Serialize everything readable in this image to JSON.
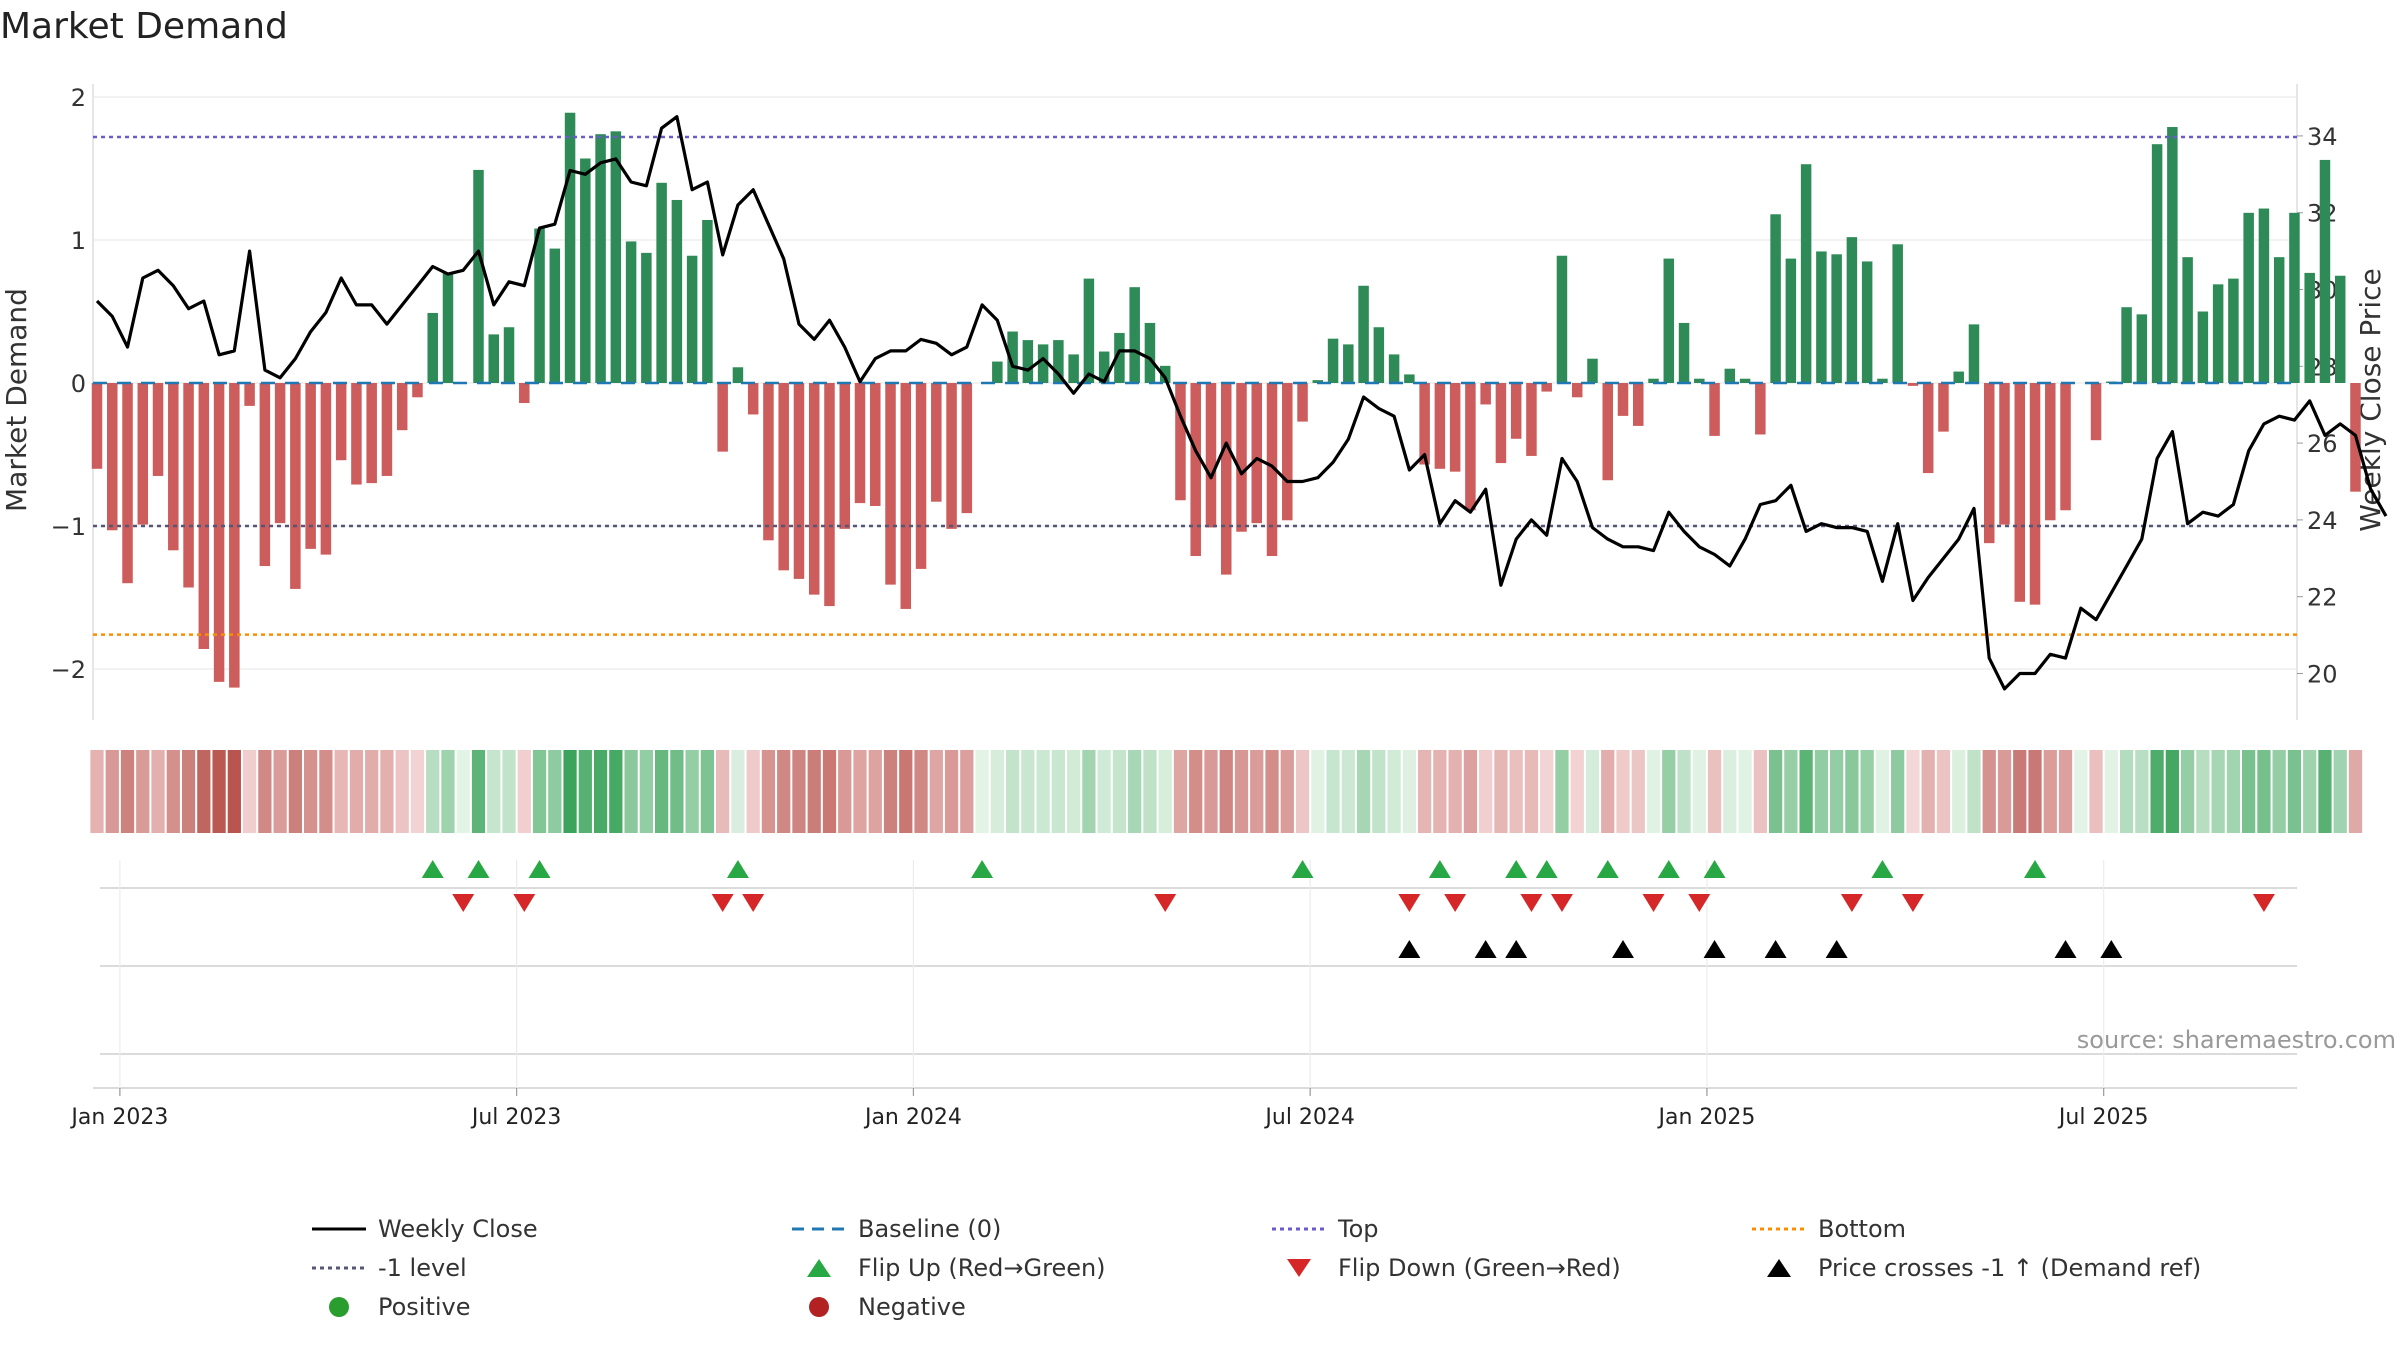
{
  "chart_data": {
    "type": "bar",
    "title": "Market Demand",
    "left_axis": {
      "label": "Market Demand",
      "range": [
        -2.35,
        2.15
      ],
      "ticks": [
        2,
        1,
        0,
        -1,
        -2
      ],
      "tick_labels": [
        "2",
        "1",
        "0",
        "−1",
        "−2"
      ]
    },
    "right_axis": {
      "label": "Weekly Close Price",
      "range": [
        18.8,
        35.2
      ],
      "ticks": [
        20,
        22,
        24,
        26,
        28,
        30,
        32,
        34
      ],
      "tick_labels": [
        "20",
        "22",
        "24",
        "26",
        "28",
        "30",
        "32",
        "34"
      ]
    },
    "x_ticks": [
      "Jan 2023",
      "Jul 2023",
      "Jan 2024",
      "Jul 2024",
      "Jan 2025",
      "Jul 2025"
    ],
    "reference_levels": {
      "top": 1.72,
      "minus_one": -1.0,
      "bottom": -1.76,
      "baseline": 0
    },
    "demand_series": {
      "name": "Market Demand",
      "values": [
        -0.6,
        -1.03,
        -1.4,
        -0.99,
        -0.65,
        -1.17,
        -1.43,
        -1.86,
        -2.09,
        -2.13,
        -0.16,
        -1.28,
        -0.98,
        -1.44,
        -1.16,
        -1.2,
        -0.54,
        -0.71,
        -0.7,
        -0.65,
        -0.33,
        -0.1,
        0.49,
        0.77,
        0.0,
        1.49,
        0.34,
        0.39,
        -0.14,
        1.08,
        0.94,
        1.89,
        1.57,
        1.74,
        1.76,
        0.99,
        0.91,
        1.4,
        1.28,
        0.89,
        1.14,
        -0.48,
        0.11,
        -0.22,
        -1.1,
        -1.31,
        -1.37,
        -1.48,
        -1.56,
        -1.02,
        -0.84,
        -0.86,
        -1.41,
        -1.58,
        -1.3,
        -0.83,
        -1.02,
        -0.91,
        0.0,
        0.15,
        0.36,
        0.3,
        0.27,
        0.3,
        0.2,
        0.73,
        0.22,
        0.35,
        0.67,
        0.42,
        0.12,
        -0.82,
        -1.21,
        -1.01,
        -1.34,
        -1.04,
        -0.98,
        -1.21,
        -0.96,
        -0.27,
        0.02,
        0.31,
        0.27,
        0.68,
        0.39,
        0.2,
        0.06,
        -0.57,
        -0.6,
        -0.62,
        -0.89,
        -0.15,
        -0.56,
        -0.39,
        -0.51,
        -0.06,
        0.89,
        -0.1,
        0.17,
        -0.68,
        -0.23,
        -0.3,
        0.03,
        0.87,
        0.42,
        0.03,
        -0.37,
        0.1,
        0.03,
        -0.36,
        1.18,
        0.87,
        1.53,
        0.92,
        0.9,
        1.02,
        0.85,
        0.03,
        0.97,
        -0.02,
        -0.63,
        -0.34,
        0.08,
        0.41,
        -1.12,
        -0.99,
        -1.53,
        -1.55,
        -0.96,
        -0.89,
        0.0,
        -0.4,
        0.01,
        0.53,
        0.48,
        1.67,
        1.79,
        0.88,
        0.5,
        0.69,
        0.73,
        1.19,
        1.22,
        0.88,
        1.19,
        0.77,
        1.56,
        0.75,
        -0.76
      ]
    },
    "weekly_close": {
      "name": "Weekly Close",
      "values": [
        29.7,
        29.3,
        28.5,
        30.3,
        30.5,
        30.1,
        29.5,
        29.7,
        28.3,
        28.4,
        31.0,
        27.9,
        27.7,
        28.2,
        28.9,
        29.4,
        30.3,
        29.6,
        29.6,
        29.1,
        29.6,
        30.1,
        30.6,
        30.4,
        30.5,
        31.0,
        29.6,
        30.2,
        30.1,
        31.6,
        31.7,
        33.1,
        33.0,
        33.3,
        33.4,
        32.8,
        32.7,
        34.2,
        34.5,
        32.6,
        32.8,
        30.9,
        32.2,
        32.6,
        31.7,
        30.8,
        29.1,
        28.7,
        29.2,
        28.5,
        27.6,
        28.2,
        28.4,
        28.4,
        28.7,
        28.6,
        28.3,
        28.5,
        29.6,
        29.2,
        28.0,
        27.9,
        28.2,
        27.8,
        27.3,
        27.8,
        27.6,
        28.4,
        28.4,
        28.2,
        27.7,
        26.7,
        25.8,
        25.1,
        26.0,
        25.2,
        25.6,
        25.4,
        25.0,
        25.0,
        25.1,
        25.5,
        26.1,
        27.2,
        26.9,
        26.7,
        25.3,
        25.7,
        23.9,
        24.5,
        24.2,
        24.8,
        22.3,
        23.5,
        24.0,
        23.6,
        25.6,
        25.0,
        23.8,
        23.5,
        23.3,
        23.3,
        23.2,
        24.2,
        23.7,
        23.3,
        23.1,
        22.8,
        23.5,
        24.4,
        24.5,
        24.9,
        23.7,
        23.9,
        23.8,
        23.8,
        23.7,
        22.4,
        23.9,
        21.9,
        22.5,
        23.0,
        23.5,
        24.3,
        20.4,
        19.6,
        20.0,
        20.0,
        20.5,
        20.4,
        21.7,
        21.4,
        22.1,
        22.8,
        23.5,
        25.6,
        26.3,
        23.9,
        24.2,
        24.1,
        24.4,
        25.8,
        26.5,
        26.7,
        26.6,
        27.1,
        26.2,
        26.5,
        26.2,
        24.8,
        24.1
      ]
    },
    "flip_up_indices": [
      22,
      25,
      29,
      42,
      58,
      79,
      88,
      93,
      95,
      99,
      103,
      106,
      117,
      127
    ],
    "flip_down_indices": [
      24,
      28,
      41,
      43,
      70,
      86,
      89,
      94,
      96,
      102,
      105,
      115,
      119,
      142
    ],
    "price_cross_indices": [
      86,
      91,
      93,
      100,
      106,
      110,
      114,
      129,
      132
    ],
    "heat_strip": "per-week demand colour (green = positive, red = negative)",
    "legend_position": "bottom",
    "source": "source: sharemaestro.com"
  },
  "legend": {
    "weekly_close": "Weekly Close",
    "baseline": "Baseline (0)",
    "top": "Top",
    "bottom": "Bottom",
    "minus_one": "-1 level",
    "flip_up": "Flip Up (Red→Green)",
    "flip_down": "Flip Down (Green→Red)",
    "price_cross": "Price crosses -1 ↑ (Demand ref)",
    "positive": "Positive",
    "negative": "Negative"
  },
  "colors": {
    "positive_bar": "#2e8b57",
    "negative_bar": "#cd5c5c",
    "price_line": "#000000",
    "baseline": "#1f77b4",
    "top": "#6a5acd",
    "bottom": "#ff8c00",
    "minus_one": "#555577",
    "flip_up": "#27a844",
    "flip_down": "#d62728",
    "positive_dot": "#2a9d2f",
    "negative_dot": "#b22222"
  }
}
